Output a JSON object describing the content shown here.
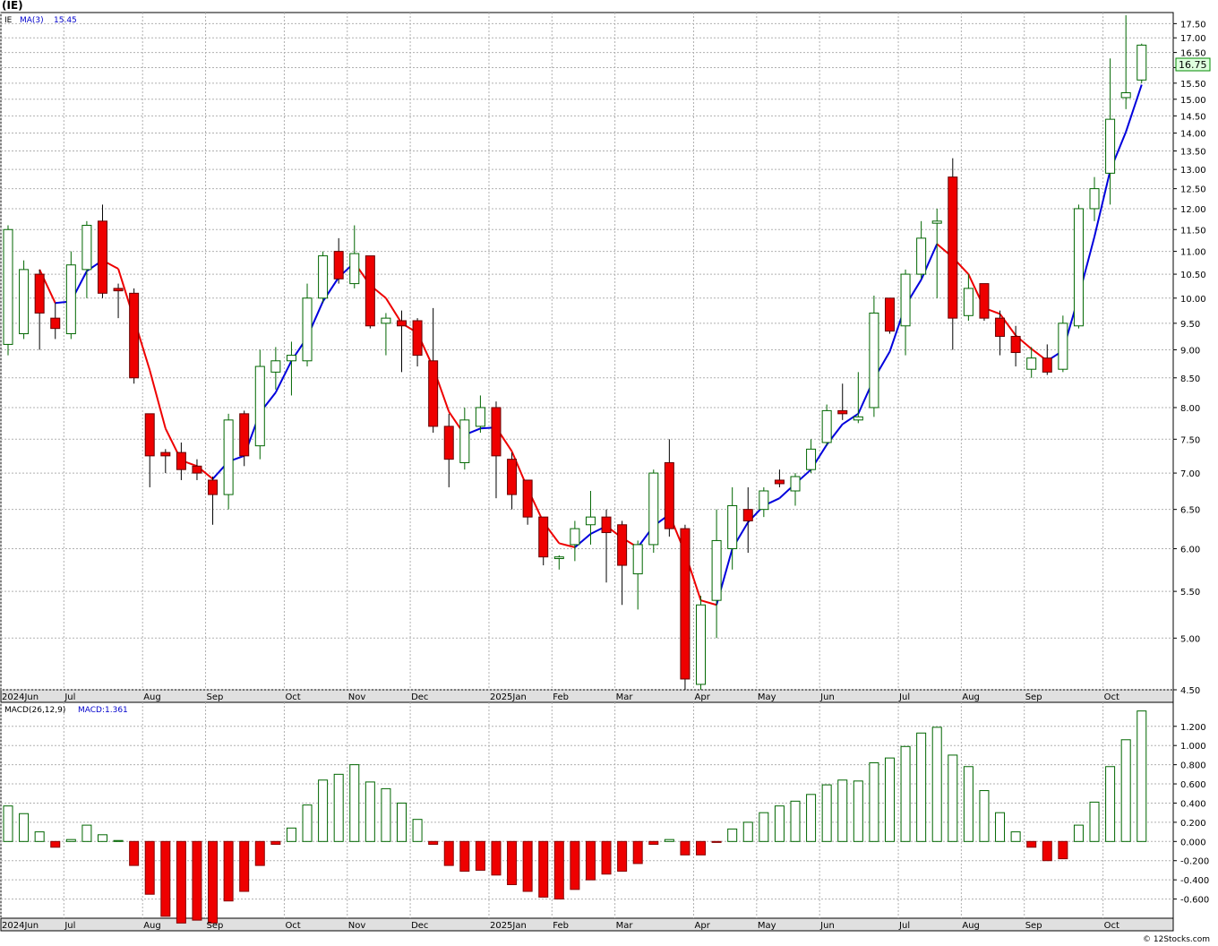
{
  "chart_data": [
    {
      "type": "candlestick",
      "title": "(IE)",
      "legend": {
        "ticker": "IE",
        "ma_label": "MA(3)",
        "ma_value": "15.45"
      },
      "last_price_label": "16.75",
      "y_scale": "log",
      "ylim": [
        4.5,
        17.9
      ],
      "y_ticks": [
        "17.50",
        "17.00",
        "16.50",
        "16.00",
        "15.50",
        "15.00",
        "14.50",
        "14.00",
        "13.50",
        "13.00",
        "12.50",
        "12.00",
        "11.50",
        "11.00",
        "10.50",
        "10.00",
        "9.50",
        "9.00",
        "8.50",
        "8.00",
        "7.50",
        "7.00",
        "6.50",
        "6.00",
        "5.50",
        "5.00",
        "4.50"
      ],
      "x_labels": [
        {
          "text": "2024Jun",
          "week": 0
        },
        {
          "text": "Jul",
          "week": 4
        },
        {
          "text": "Aug",
          "week": 9
        },
        {
          "text": "Sep",
          "week": 13
        },
        {
          "text": "Oct",
          "week": 18
        },
        {
          "text": "Nov",
          "week": 22
        },
        {
          "text": "Dec",
          "week": 26
        },
        {
          "text": "2025Jan",
          "week": 31
        },
        {
          "text": "Feb",
          "week": 35
        },
        {
          "text": "Mar",
          "week": 39
        },
        {
          "text": "Apr",
          "week": 44
        },
        {
          "text": "May",
          "week": 48
        },
        {
          "text": "Jun",
          "week": 52
        },
        {
          "text": "Jul",
          "week": 57
        },
        {
          "text": "Aug",
          "week": 61
        },
        {
          "text": "Sep",
          "week": 65
        },
        {
          "text": "Oct",
          "week": 70
        }
      ],
      "candles": [
        {
          "o": 9.1,
          "h": 11.6,
          "l": 8.9,
          "c": 11.5
        },
        {
          "o": 9.3,
          "h": 10.8,
          "l": 9.2,
          "c": 10.6
        },
        {
          "o": 10.5,
          "h": 10.6,
          "l": 9.0,
          "c": 9.7
        },
        {
          "o": 9.6,
          "h": 9.9,
          "l": 9.2,
          "c": 9.4
        },
        {
          "o": 9.3,
          "h": 11.0,
          "l": 9.2,
          "c": 10.7
        },
        {
          "o": 10.6,
          "h": 11.7,
          "l": 10.0,
          "c": 11.6
        },
        {
          "o": 11.7,
          "h": 12.1,
          "l": 10.0,
          "c": 10.1
        },
        {
          "o": 10.2,
          "h": 10.3,
          "l": 9.6,
          "c": 10.15
        },
        {
          "o": 10.1,
          "h": 10.2,
          "l": 8.4,
          "c": 8.5
        },
        {
          "o": 7.9,
          "h": 7.9,
          "l": 6.8,
          "c": 7.25
        },
        {
          "o": 7.3,
          "h": 7.35,
          "l": 7.0,
          "c": 7.25
        },
        {
          "o": 7.3,
          "h": 7.45,
          "l": 6.9,
          "c": 7.05
        },
        {
          "o": 7.1,
          "h": 7.2,
          "l": 6.9,
          "c": 7.0
        },
        {
          "o": 6.9,
          "h": 6.95,
          "l": 6.3,
          "c": 6.7
        },
        {
          "o": 6.7,
          "h": 7.9,
          "l": 6.5,
          "c": 7.8
        },
        {
          "o": 7.9,
          "h": 7.95,
          "l": 7.1,
          "c": 7.25
        },
        {
          "o": 7.4,
          "h": 9.0,
          "l": 7.2,
          "c": 8.7
        },
        {
          "o": 8.6,
          "h": 9.05,
          "l": 8.3,
          "c": 8.8
        },
        {
          "o": 8.8,
          "h": 9.15,
          "l": 8.2,
          "c": 8.9
        },
        {
          "o": 8.8,
          "h": 10.3,
          "l": 8.7,
          "c": 10.0
        },
        {
          "o": 10.0,
          "h": 11.0,
          "l": 9.9,
          "c": 10.9
        },
        {
          "o": 11.0,
          "h": 11.3,
          "l": 10.3,
          "c": 10.4
        },
        {
          "o": 10.3,
          "h": 11.6,
          "l": 10.2,
          "c": 10.95
        },
        {
          "o": 10.9,
          "h": 10.9,
          "l": 9.4,
          "c": 9.45
        },
        {
          "o": 9.5,
          "h": 9.7,
          "l": 8.9,
          "c": 9.6
        },
        {
          "o": 9.55,
          "h": 9.75,
          "l": 8.6,
          "c": 9.45
        },
        {
          "o": 9.55,
          "h": 9.6,
          "l": 8.7,
          "c": 8.9
        },
        {
          "o": 8.8,
          "h": 9.8,
          "l": 7.6,
          "c": 7.7
        },
        {
          "o": 7.7,
          "h": 7.9,
          "l": 6.8,
          "c": 7.2
        },
        {
          "o": 7.15,
          "h": 8.0,
          "l": 7.05,
          "c": 7.8
        },
        {
          "o": 7.7,
          "h": 8.2,
          "l": 7.6,
          "c": 8.0
        },
        {
          "o": 8.0,
          "h": 8.1,
          "l": 6.65,
          "c": 7.25
        },
        {
          "o": 7.2,
          "h": 7.3,
          "l": 6.5,
          "c": 6.7
        },
        {
          "o": 6.9,
          "h": 6.9,
          "l": 6.3,
          "c": 6.4
        },
        {
          "o": 6.4,
          "h": 6.4,
          "l": 5.8,
          "c": 5.9
        },
        {
          "o": 5.88,
          "h": 5.92,
          "l": 5.75,
          "c": 5.9
        },
        {
          "o": 6.05,
          "h": 6.35,
          "l": 5.85,
          "c": 6.25
        },
        {
          "o": 6.3,
          "h": 6.75,
          "l": 6.05,
          "c": 6.4
        },
        {
          "o": 6.4,
          "h": 6.5,
          "l": 5.6,
          "c": 6.2
        },
        {
          "o": 6.3,
          "h": 6.35,
          "l": 5.35,
          "c": 5.8
        },
        {
          "o": 5.7,
          "h": 6.1,
          "l": 5.3,
          "c": 6.05
        },
        {
          "o": 6.05,
          "h": 7.05,
          "l": 5.95,
          "c": 7.0
        },
        {
          "o": 7.15,
          "h": 7.5,
          "l": 6.15,
          "c": 6.25
        },
        {
          "o": 6.25,
          "h": 6.3,
          "l": 4.5,
          "c": 4.6
        },
        {
          "o": 4.55,
          "h": 5.45,
          "l": 4.5,
          "c": 5.35
        },
        {
          "o": 5.4,
          "h": 6.5,
          "l": 5.0,
          "c": 6.1
        },
        {
          "o": 6.0,
          "h": 6.8,
          "l": 5.75,
          "c": 6.55
        },
        {
          "o": 6.5,
          "h": 6.8,
          "l": 5.95,
          "c": 6.35
        },
        {
          "o": 6.5,
          "h": 6.8,
          "l": 6.4,
          "c": 6.75
        },
        {
          "o": 6.9,
          "h": 7.05,
          "l": 6.8,
          "c": 6.85
        },
        {
          "o": 6.75,
          "h": 7.0,
          "l": 6.55,
          "c": 6.95
        },
        {
          "o": 7.05,
          "h": 7.5,
          "l": 7.0,
          "c": 7.35
        },
        {
          "o": 7.45,
          "h": 8.05,
          "l": 7.4,
          "c": 7.95
        },
        {
          "o": 7.95,
          "h": 8.4,
          "l": 7.8,
          "c": 7.9
        },
        {
          "o": 7.8,
          "h": 8.6,
          "l": 7.75,
          "c": 7.85
        },
        {
          "o": 8.0,
          "h": 10.05,
          "l": 7.85,
          "c": 9.7
        },
        {
          "o": 10.0,
          "h": 10.0,
          "l": 9.3,
          "c": 9.35
        },
        {
          "o": 9.45,
          "h": 10.6,
          "l": 8.9,
          "c": 10.5
        },
        {
          "o": 10.5,
          "h": 11.7,
          "l": 10.4,
          "c": 11.3
        },
        {
          "o": 11.65,
          "h": 12.0,
          "l": 10.0,
          "c": 11.7
        },
        {
          "o": 12.8,
          "h": 13.3,
          "l": 9.0,
          "c": 9.6
        },
        {
          "o": 9.65,
          "h": 10.5,
          "l": 9.55,
          "c": 10.2
        },
        {
          "o": 10.3,
          "h": 10.3,
          "l": 9.55,
          "c": 9.6
        },
        {
          "o": 9.6,
          "h": 9.75,
          "l": 8.9,
          "c": 9.25
        },
        {
          "o": 9.25,
          "h": 9.45,
          "l": 8.7,
          "c": 8.95
        },
        {
          "o": 8.65,
          "h": 9.05,
          "l": 8.5,
          "c": 8.85
        },
        {
          "o": 8.85,
          "h": 9.1,
          "l": 8.55,
          "c": 8.6
        },
        {
          "o": 8.65,
          "h": 9.65,
          "l": 8.6,
          "c": 9.5
        },
        {
          "o": 9.45,
          "h": 12.1,
          "l": 9.4,
          "c": 12.0
        },
        {
          "o": 12.0,
          "h": 12.8,
          "l": 11.7,
          "c": 12.5
        },
        {
          "o": 12.9,
          "h": 16.3,
          "l": 12.1,
          "c": 14.4
        },
        {
          "o": 15.05,
          "h": 17.8,
          "l": 14.7,
          "c": 15.2
        },
        {
          "o": 15.6,
          "h": 16.8,
          "l": 15.5,
          "c": 16.75
        }
      ]
    },
    {
      "type": "bar",
      "title": "MACD(26,12,9)",
      "legend_value": "MACD:1.361",
      "ylim": [
        -0.8,
        1.45
      ],
      "y_ticks": [
        "1.200",
        "1.000",
        "0.800",
        "0.600",
        "0.400",
        "0.200",
        "0.000",
        "-0.200",
        "-0.400",
        "-0.600"
      ],
      "values": [
        0.37,
        0.29,
        0.1,
        -0.06,
        0.02,
        0.17,
        0.07,
        0.01,
        -0.25,
        -0.55,
        -0.78,
        -0.85,
        -0.82,
        -0.85,
        -0.62,
        -0.52,
        -0.25,
        -0.03,
        0.14,
        0.38,
        0.64,
        0.7,
        0.8,
        0.62,
        0.55,
        0.4,
        0.23,
        -0.03,
        -0.25,
        -0.31,
        -0.3,
        -0.35,
        -0.45,
        -0.52,
        -0.58,
        -0.6,
        -0.5,
        -0.4,
        -0.34,
        -0.31,
        -0.23,
        -0.03,
        0.02,
        -0.14,
        -0.14,
        -0.01,
        0.13,
        0.2,
        0.3,
        0.37,
        0.42,
        0.49,
        0.59,
        0.64,
        0.63,
        0.82,
        0.87,
        0.99,
        1.13,
        1.19,
        0.9,
        0.78,
        0.53,
        0.3,
        0.1,
        -0.06,
        -0.2,
        -0.18,
        0.17,
        0.41,
        0.78,
        1.06,
        1.36
      ]
    }
  ],
  "footer": "© 12Stocks.com"
}
